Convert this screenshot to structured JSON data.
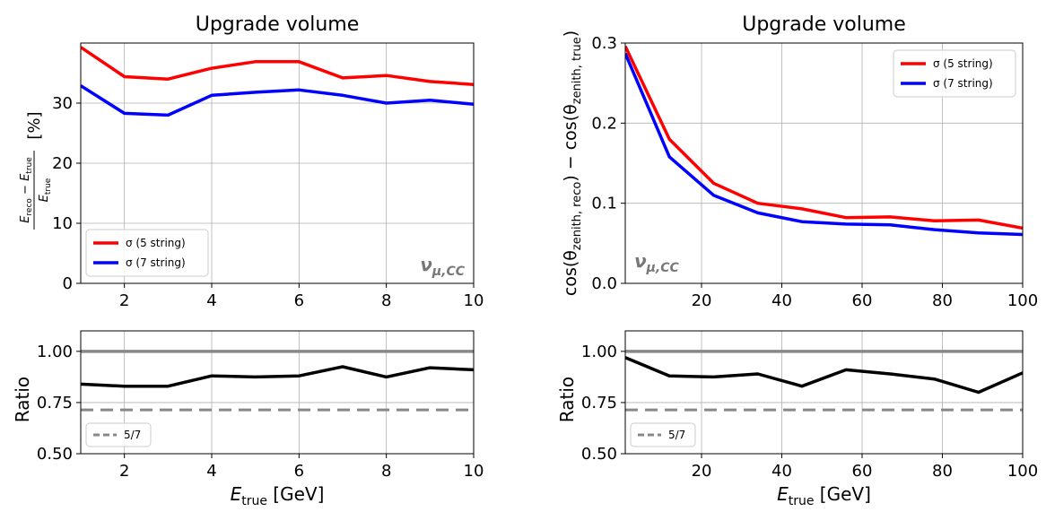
{
  "chart_data": [
    {
      "type": "line",
      "title": "Upgrade volume",
      "ylabel_parts": {
        "num_a": "E",
        "num_a_sub": "reco",
        "minus": " − ",
        "num_b": "E",
        "num_b_sub": "true",
        "den": "E",
        "den_sub": "true",
        "unit": "[%]"
      },
      "xlim": [
        1,
        10
      ],
      "ylim": [
        0,
        40
      ],
      "xticks": [
        2,
        4,
        6,
        8,
        10
      ],
      "yticks": [
        0,
        10,
        20,
        30
      ],
      "grid": true,
      "legend_position": "lower-left",
      "annotation": {
        "main": "ν",
        "sub": "μ,CC"
      },
      "x": [
        1,
        2,
        3,
        4,
        5,
        6,
        7,
        8,
        9,
        10
      ],
      "series": [
        {
          "name": "σ (5 string)",
          "color": "#ff0000",
          "values": [
            39.3,
            34.4,
            34.0,
            35.8,
            36.9,
            36.9,
            34.2,
            34.6,
            33.6,
            33.1
          ]
        },
        {
          "name": "σ (7 string)",
          "color": "#0000ff",
          "values": [
            32.9,
            28.3,
            28.0,
            31.3,
            31.8,
            32.2,
            31.3,
            30.0,
            30.5,
            29.8
          ]
        }
      ]
    },
    {
      "type": "line",
      "ylabel": "Ratio",
      "xlabel_main": "E",
      "xlabel_sub": "true",
      "xlabel_unit": " [GeV]",
      "xlim": [
        1,
        10
      ],
      "ylim": [
        0.5,
        1.1
      ],
      "xticks": [
        2,
        4,
        6,
        8,
        10
      ],
      "yticks": [
        "0.50",
        "0.75",
        "1.00"
      ],
      "grid": true,
      "legend_position": "lower-left",
      "reference_line": 1.0,
      "reference_dashed": {
        "name": "5/7",
        "value": 0.714
      },
      "x": [
        1,
        2,
        3,
        4,
        5,
        6,
        7,
        8,
        9,
        10
      ],
      "values": [
        0.84,
        0.83,
        0.83,
        0.88,
        0.875,
        0.88,
        0.925,
        0.875,
        0.92,
        0.91
      ]
    },
    {
      "type": "line",
      "title": "Upgrade volume",
      "ylabel_parts": {
        "a": "cos(θ",
        "a_sub": "zenith, reco",
        "mid": ") − cos(θ",
        "b_sub": "zenith, true",
        "end": ")"
      },
      "xlim": [
        1,
        100
      ],
      "ylim": [
        0,
        0.3
      ],
      "xticks": [
        20,
        40,
        60,
        80,
        100
      ],
      "yticks": [
        "0.0",
        "0.1",
        "0.2",
        "0.3"
      ],
      "grid": true,
      "legend_position": "top-right",
      "annotation": {
        "main": "ν",
        "sub": "μ,CC"
      },
      "x": [
        1,
        12,
        23,
        34,
        45,
        56,
        67,
        78,
        89,
        100
      ],
      "series": [
        {
          "name": "σ (5 string)",
          "color": "#ff0000",
          "values": [
            0.296,
            0.18,
            0.125,
            0.1,
            0.093,
            0.082,
            0.083,
            0.078,
            0.079,
            0.069
          ]
        },
        {
          "name": "σ (7 string)",
          "color": "#0000ff",
          "values": [
            0.287,
            0.158,
            0.11,
            0.088,
            0.077,
            0.074,
            0.073,
            0.067,
            0.063,
            0.061
          ]
        }
      ]
    },
    {
      "type": "line",
      "ylabel": "Ratio",
      "xlabel_main": "E",
      "xlabel_sub": "true",
      "xlabel_unit": " [GeV]",
      "xlim": [
        1,
        100
      ],
      "ylim": [
        0.5,
        1.1
      ],
      "xticks": [
        20,
        40,
        60,
        80,
        100
      ],
      "yticks": [
        "0.50",
        "0.75",
        "1.00"
      ],
      "grid": true,
      "legend_position": "lower-left",
      "reference_line": 1.0,
      "reference_dashed": {
        "name": "5/7",
        "value": 0.714
      },
      "x": [
        1,
        12,
        23,
        34,
        45,
        56,
        67,
        78,
        89,
        100
      ],
      "values": [
        0.97,
        0.88,
        0.875,
        0.89,
        0.83,
        0.91,
        0.89,
        0.865,
        0.8,
        0.895
      ]
    }
  ]
}
